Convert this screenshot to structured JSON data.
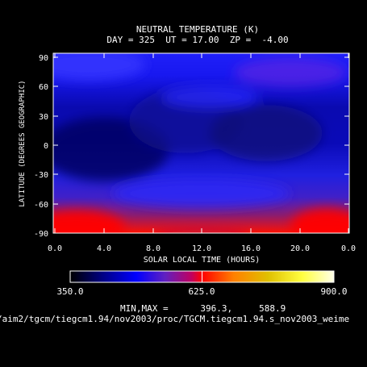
{
  "chart_data": {
    "type": "heatmap",
    "title": "NEUTRAL TEMPERATURE (K)",
    "subtitle": "DAY = 325  UT = 17.00  ZP =  -4.00",
    "xlabel": "SOLAR LOCAL TIME (HOURS)",
    "ylabel": "LATITUDE (DEGREES GEOGRAPHIC)",
    "xlim": [
      0,
      24
    ],
    "ylim": [
      -90,
      90
    ],
    "x_ticks": [
      "0.0",
      "4.0",
      "8.0",
      "12.0",
      "16.0",
      "20.0",
      "0.0"
    ],
    "y_ticks": [
      "90",
      "60",
      "30",
      "0",
      "-30",
      "-60",
      "-90"
    ],
    "colorbar": {
      "min_label": "350.0",
      "mid_label": "625.0",
      "max_label": "900.0",
      "range": [
        350,
        900
      ]
    },
    "minmax_text": "MIN,MAX =      396.3,     588.9",
    "path_text": "/aim2/tgcm/tiegcm1.94/nov2003/proc/TGCM.tiegcm1.94.s_nov2003_weime",
    "field_min": 396.3,
    "field_max": 588.9
  }
}
